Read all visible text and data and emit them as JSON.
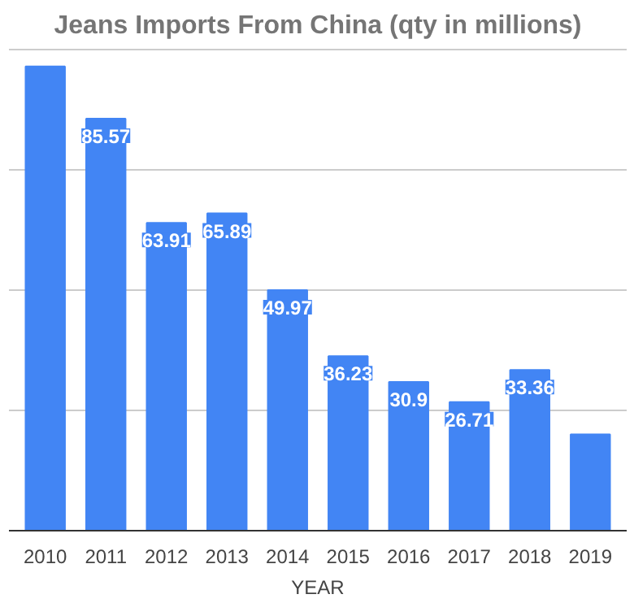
{
  "chart_data": {
    "type": "bar",
    "title": "Jeans Imports From China (qty in millions)",
    "xlabel": "YEAR",
    "categories": [
      "2010",
      "2011",
      "2012",
      "2013",
      "2014",
      "2015",
      "2016",
      "2017",
      "2018",
      "2019"
    ],
    "values": [
      96.4,
      85.57,
      63.91,
      65.89,
      49.97,
      36.23,
      30.9,
      26.71,
      33.36,
      20
    ],
    "value_labels": [
      null,
      "85.57",
      "63.91",
      "65.89",
      "49.97",
      "36.23",
      "30.9",
      "26.71",
      "33.36",
      null
    ],
    "color": "#4285f4",
    "yticks": [
      {
        "value": 0,
        "label": null
      },
      {
        "value": 25,
        "label": null
      },
      {
        "value": 50,
        "label": null
      },
      {
        "value": 75,
        "label": null
      },
      {
        "value": 100,
        "label": null
      }
    ],
    "grid": "y",
    "tick_labels": "x"
  }
}
